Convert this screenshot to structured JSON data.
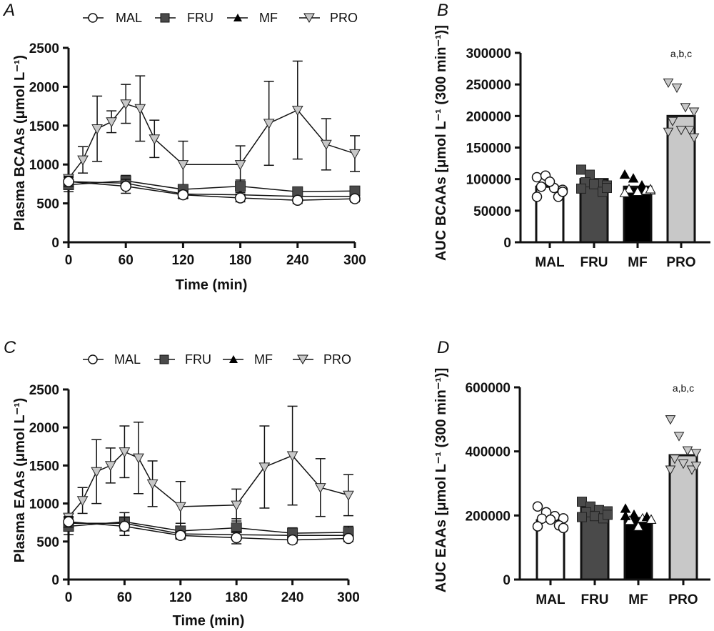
{
  "legend": {
    "items": [
      "MAL",
      "FRU",
      "MF",
      "PRO"
    ]
  },
  "colors": {
    "MAL": "#ffffff",
    "FRU": "#4a4a4a",
    "MF": "#000000",
    "PRO": "#c8c8c8",
    "axis": "#111111"
  },
  "chart_data": [
    {
      "panel": "A",
      "type": "line",
      "xlabel": "Time (min)",
      "ylabel": "Plasma BCAAs (μmol L⁻¹)",
      "xlim": [
        0,
        300
      ],
      "ylim": [
        0,
        2500
      ],
      "xticks": [
        0,
        60,
        120,
        180,
        240,
        300
      ],
      "yticks": [
        0,
        500,
        1000,
        1500,
        2000,
        2500
      ],
      "series": [
        {
          "name": "MF",
          "marker": "triangle-up",
          "x": [
            0,
            60,
            120,
            180,
            240,
            300
          ],
          "y": [
            780,
            760,
            620,
            610,
            590,
            590
          ],
          "sd": [
            70,
            70,
            50,
            50,
            40,
            40
          ]
        },
        {
          "name": "FRU",
          "marker": "square",
          "x": [
            0,
            60,
            120,
            180,
            240,
            300
          ],
          "y": [
            740,
            790,
            680,
            720,
            650,
            660
          ],
          "sd": [
            90,
            70,
            60,
            80,
            40,
            40
          ]
        },
        {
          "name": "MAL",
          "marker": "circle",
          "x": [
            0,
            60,
            120,
            180,
            240,
            300
          ],
          "y": [
            780,
            720,
            610,
            570,
            540,
            560
          ],
          "sd": [
            60,
            90,
            50,
            50,
            40,
            40
          ]
        },
        {
          "name": "PRO",
          "marker": "triangle-down",
          "x": [
            0,
            15,
            30,
            45,
            60,
            75,
            90,
            120,
            180,
            210,
            240,
            270,
            300
          ],
          "y": [
            820,
            1060,
            1460,
            1550,
            1780,
            1720,
            1330,
            1000,
            1000,
            1530,
            1700,
            1260,
            1140
          ],
          "sd": [
            40,
            170,
            420,
            140,
            250,
            420,
            240,
            300,
            240,
            540,
            630,
            330,
            230
          ]
        }
      ]
    },
    {
      "panel": "B",
      "type": "bar",
      "ylabel": "AUC BCAAs [μmol L⁻¹ (300 min⁻¹)]",
      "categories": [
        "MAL",
        "FRU",
        "MF",
        "PRO"
      ],
      "values": [
        88000,
        100000,
        88000,
        200000
      ],
      "ylim": [
        0,
        300000
      ],
      "yticks": [
        0,
        50000,
        100000,
        150000,
        200000,
        250000,
        300000
      ],
      "annotation": {
        "category": "PRO",
        "text": "a,b,c"
      },
      "points": [
        [
          103000,
          105600,
          86000,
          83000,
          88000,
          96000,
          72000,
          72000,
          80000
        ],
        [
          115000,
          107000,
          93000,
          90000,
          95000,
          92000,
          80000,
          85000,
          86000
        ],
        [
          107000,
          101000,
          90000,
          82000,
          84000,
          80000,
          82000,
          78000,
          84000
        ],
        [
          253000,
          245000,
          214000,
          207000,
          192000,
          178000,
          178000,
          175000,
          166000
        ]
      ]
    },
    {
      "panel": "C",
      "type": "line",
      "xlabel": "Time (min)",
      "ylabel": "Plasma EAAs (μmol L⁻¹)",
      "xlim": [
        0,
        300
      ],
      "ylim": [
        0,
        2500
      ],
      "xticks": [
        0,
        60,
        120,
        180,
        240,
        300
      ],
      "yticks": [
        0,
        500,
        1000,
        1500,
        2000,
        2500
      ],
      "series": [
        {
          "name": "MF",
          "marker": "triangle-up",
          "x": [
            0,
            60,
            120,
            180,
            240,
            300
          ],
          "y": [
            740,
            740,
            600,
            590,
            580,
            580
          ],
          "sd": [
            80,
            80,
            60,
            60,
            50,
            50
          ]
        },
        {
          "name": "FRU",
          "marker": "square",
          "x": [
            0,
            60,
            120,
            180,
            240,
            300
          ],
          "y": [
            700,
            760,
            640,
            680,
            610,
            620
          ],
          "sd": [
            110,
            120,
            100,
            120,
            70,
            80
          ]
        },
        {
          "name": "MAL",
          "marker": "circle",
          "x": [
            0,
            60,
            120,
            180,
            240,
            300
          ],
          "y": [
            760,
            700,
            580,
            550,
            520,
            540
          ],
          "sd": [
            70,
            120,
            50,
            80,
            40,
            40
          ]
        },
        {
          "name": "PRO",
          "marker": "triangle-down",
          "x": [
            0,
            15,
            30,
            45,
            60,
            75,
            90,
            120,
            180,
            210,
            240,
            270,
            300
          ],
          "y": [
            820,
            1040,
            1420,
            1500,
            1680,
            1600,
            1260,
            960,
            980,
            1480,
            1630,
            1210,
            1110
          ],
          "sd": [
            40,
            170,
            420,
            230,
            340,
            470,
            300,
            330,
            210,
            540,
            650,
            380,
            270
          ]
        }
      ]
    },
    {
      "panel": "D",
      "type": "bar",
      "ylabel": "AUC EAAs [μmol L⁻¹ (300 min⁻¹)]",
      "categories": [
        "MAL",
        "FRU",
        "MF",
        "PRO"
      ],
      "values": [
        185000,
        225000,
        192000,
        388000
      ],
      "ylim": [
        0,
        600000
      ],
      "yticks": [
        0,
        200000,
        400000,
        600000
      ],
      "annotation": {
        "category": "PRO",
        "text": "a,b,c"
      },
      "points": [
        [
          228000,
          210000,
          198000,
          191000,
          190000,
          187000,
          169000,
          166000,
          161000
        ],
        [
          243000,
          228000,
          217000,
          213000,
          210000,
          198000,
          191000,
          195000,
          202000
        ],
        [
          221000,
          202000,
          191000,
          187000,
          184000,
          165000,
          195000,
          198000,
          187000
        ],
        [
          500000,
          448000,
          403000,
          395000,
          377000,
          362000,
          343000,
          343000,
          355000
        ]
      ]
    }
  ]
}
